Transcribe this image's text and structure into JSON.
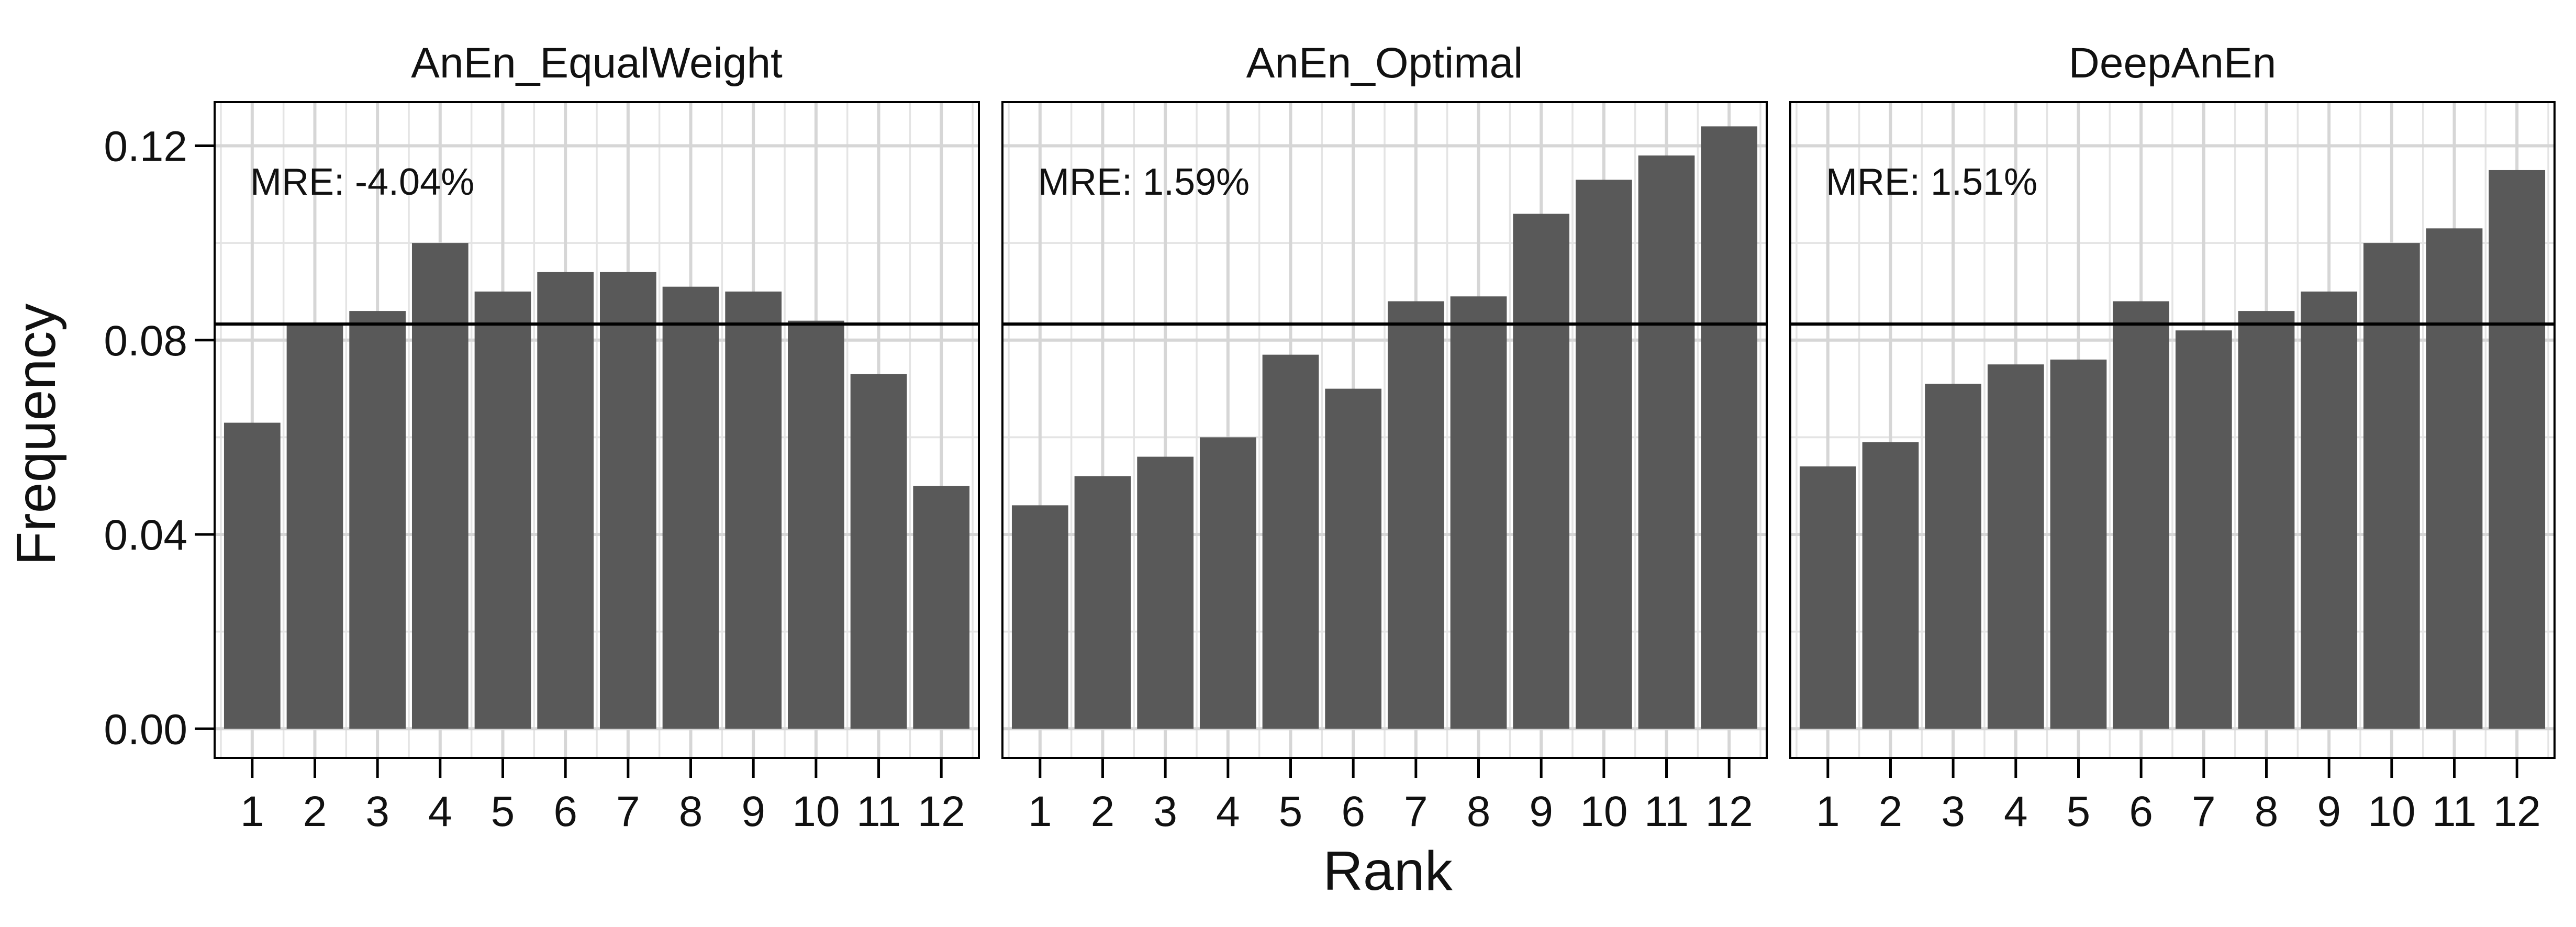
{
  "chart_data": {
    "type": "bar",
    "xlabel": "Rank",
    "ylabel": "Frequency",
    "ylim": [
      -0.006,
      0.129
    ],
    "yticks": [
      0.0,
      0.04,
      0.08,
      0.12
    ],
    "ytick_labels": [
      "0.00",
      "0.04",
      "0.08",
      "0.12"
    ],
    "categories": [
      "1",
      "2",
      "3",
      "4",
      "5",
      "6",
      "7",
      "8",
      "9",
      "10",
      "11",
      "12"
    ],
    "reference_line": 0.0833,
    "grid": true,
    "bar_color": "#595959",
    "panels": [
      {
        "title": "AnEn_EqualWeight",
        "annotation": "MRE: -4.04%",
        "values": [
          0.063,
          0.083,
          0.086,
          0.1,
          0.09,
          0.094,
          0.094,
          0.091,
          0.09,
          0.084,
          0.073,
          0.05
        ]
      },
      {
        "title": "AnEn_Optimal",
        "annotation": "MRE: 1.59%",
        "values": [
          0.046,
          0.052,
          0.056,
          0.06,
          0.077,
          0.07,
          0.088,
          0.089,
          0.106,
          0.113,
          0.118,
          0.124
        ]
      },
      {
        "title": "DeepAnEn",
        "annotation": "MRE: 1.51%",
        "values": [
          0.054,
          0.059,
          0.071,
          0.075,
          0.076,
          0.088,
          0.082,
          0.086,
          0.09,
          0.1,
          0.103,
          0.115
        ]
      }
    ]
  }
}
